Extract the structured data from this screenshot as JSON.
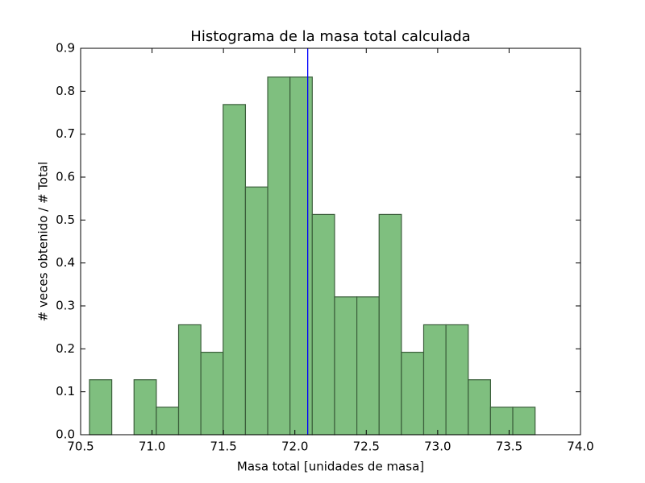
{
  "chart_data": {
    "type": "histogram",
    "title": "Histograma de la masa total calculada",
    "xlabel": "Masa total [unidades de masa]",
    "ylabel": "# veces obtenido / # Total",
    "bins": [
      70.562,
      70.718,
      70.874,
      71.03,
      71.186,
      71.342,
      71.498,
      71.654,
      71.81,
      71.966,
      72.122,
      72.278,
      72.434,
      72.59,
      72.746,
      72.902,
      73.058,
      73.214,
      73.37,
      73.526,
      73.682
    ],
    "counts": [
      0.128,
      0,
      0.128,
      0.064,
      0.256,
      0.192,
      0.769,
      0.577,
      0.833,
      0.833,
      0.513,
      0.321,
      0.321,
      0.513,
      0.192,
      0.256,
      0.256,
      0.128,
      0.064,
      0.064
    ],
    "color": "#7fbf7f",
    "edgecolor": "#3b5e3b",
    "vline": {
      "x": 72.09,
      "color": "#0000ff"
    },
    "xlim": [
      70.5,
      74.0
    ],
    "xticks": [
      70.5,
      {
        "value": 71.0,
        "label": "71.0"
      },
      71.5,
      {
        "value": 72.0,
        "label": "72.0"
      },
      72.5,
      {
        "value": 73.0,
        "label": "73.0"
      },
      73.5,
      {
        "value": 74.0,
        "label": "74.0"
      }
    ],
    "ylim": [
      0,
      0.9
    ],
    "yticks": [
      {
        "value": 0,
        "label": "0.0"
      },
      0.1,
      0.2,
      0.3,
      0.4,
      0.5,
      0.6,
      0.7,
      0.8,
      0.9
    ],
    "grid": false
  }
}
